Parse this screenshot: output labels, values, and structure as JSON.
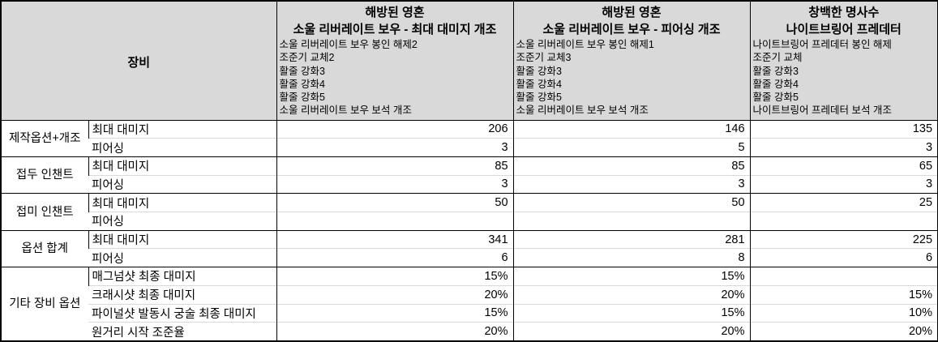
{
  "table": {
    "equipment_header": "장비",
    "columns": [
      {
        "title_line1": "해방된 영혼",
        "title_line2": "소울 리버레이트 보우 - 최대 대미지 개조",
        "details": [
          "소울 리버레이트 보우 봉인 해제2",
          "조준기 교체2",
          "활줄 강화3",
          "활줄 강화4",
          "활줄 강화5",
          "소울 리버레이트 보우 보석 개조"
        ]
      },
      {
        "title_line1": "해방된 영혼",
        "title_line2": "소울 리버레이트 보우 - 피어싱 개조",
        "details": [
          "소울 리버레이트 보우 봉인 해제1",
          "조준기 교체3",
          "활줄 강화3",
          "활줄 강화4",
          "활줄 강화5",
          "소울 리버레이트 보우 보석 개조"
        ]
      },
      {
        "title_line1": "창백한 명사수",
        "title_line2": "나이트브링어 프레데터",
        "details": [
          "나이트브링어 프레데터 봉인 해제",
          "조준기 교체",
          "활줄 강화3",
          "활줄 강화4",
          "활줄 강화5",
          "나이트브링어 프레데터 보석 개조"
        ]
      }
    ],
    "groups": [
      {
        "label": "제작옵션+개조",
        "rows": [
          {
            "stat": "최대 대미지",
            "values": [
              "206",
              "146",
              "135"
            ]
          },
          {
            "stat": "피어싱",
            "values": [
              "3",
              "5",
              "3"
            ]
          }
        ]
      },
      {
        "label": "접두 인챈트",
        "rows": [
          {
            "stat": "최대 대미지",
            "values": [
              "85",
              "85",
              "65"
            ]
          },
          {
            "stat": "피어싱",
            "values": [
              "3",
              "3",
              "3"
            ]
          }
        ]
      },
      {
        "label": "접미 인챈트",
        "rows": [
          {
            "stat": "최대 대미지",
            "values": [
              "50",
              "50",
              "25"
            ]
          },
          {
            "stat": "피어싱",
            "values": [
              "",
              "",
              ""
            ]
          }
        ]
      },
      {
        "label": "옵션 합계",
        "rows": [
          {
            "stat": "최대 대미지",
            "values": [
              "341",
              "281",
              "225"
            ]
          },
          {
            "stat": "피어싱",
            "values": [
              "6",
              "8",
              "6"
            ]
          }
        ]
      },
      {
        "label": "기타 장비 옵션",
        "rows": [
          {
            "stat": "매그넘샷 최종 대미지",
            "values": [
              "15%",
              "15%",
              ""
            ]
          },
          {
            "stat": "크래시샷 최종 대미지",
            "values": [
              "20%",
              "20%",
              "15%"
            ]
          },
          {
            "stat": "파이널샷 발동시 궁술 최종 대미지",
            "values": [
              "15%",
              "15%",
              "10%"
            ]
          },
          {
            "stat": "원거리 시작 조준율",
            "values": [
              "20%",
              "20%",
              "20%"
            ]
          }
        ]
      }
    ],
    "colors": {
      "header_bg": "#d9d9d9",
      "border_dark": "#000000",
      "border_light": "#d9d9d9"
    }
  }
}
